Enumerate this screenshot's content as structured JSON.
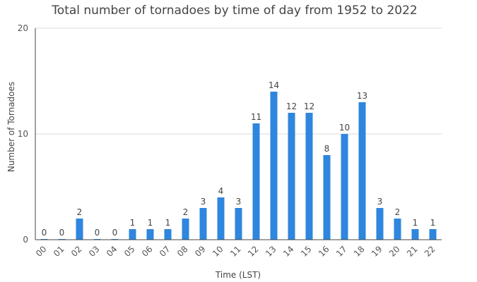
{
  "chart_data": {
    "type": "bar",
    "title": "Total number of tornadoes by time of day from 1952 to 2022",
    "xlabel": "Time (LST)",
    "ylabel": "Number of Tornadoes",
    "categories": [
      "00",
      "01",
      "02",
      "03",
      "04",
      "05",
      "06",
      "07",
      "08",
      "09",
      "10",
      "11",
      "12",
      "13",
      "14",
      "15",
      "16",
      "17",
      "18",
      "19",
      "20",
      "21",
      "22"
    ],
    "values": [
      0,
      0,
      2,
      0,
      0,
      1,
      1,
      1,
      2,
      3,
      4,
      3,
      11,
      14,
      12,
      12,
      8,
      10,
      13,
      3,
      2,
      1,
      1
    ],
    "yticks": [
      "0",
      "10",
      "20"
    ],
    "ylim": [
      0,
      20
    ],
    "grid": "horizontal",
    "legend": "none",
    "bar_color": "#2e86de"
  }
}
